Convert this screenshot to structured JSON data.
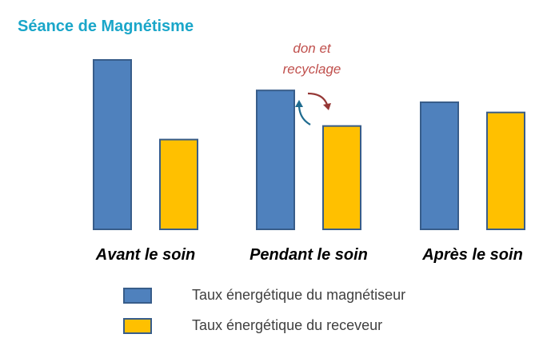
{
  "title": "Séance de Magnétisme",
  "annotation": [
    "don et",
    "recyclage"
  ],
  "colors": {
    "title": "#1aa6c9",
    "magnetiseur": "#4f81bd",
    "receveur": "#ffc000",
    "bar_border": "#385d8a",
    "annotation": "#c0504d",
    "arrow_up": "#1f6b8f",
    "arrow_down": "#953735"
  },
  "chart_data": {
    "type": "bar",
    "categories": [
      "Avant le soin",
      "Pendant le soin",
      "Après le soin"
    ],
    "series": [
      {
        "name": "Taux énergétique du magnétiseur",
        "values": [
          100,
          82,
          75
        ]
      },
      {
        "name": "Taux énergétique du receveur",
        "values": [
          53,
          61,
          69
        ]
      }
    ],
    "title": "Séance de Magnétisme",
    "xlabel": "",
    "ylabel": "",
    "ylim": [
      0,
      100
    ],
    "grid": false,
    "legend": "bottom"
  }
}
